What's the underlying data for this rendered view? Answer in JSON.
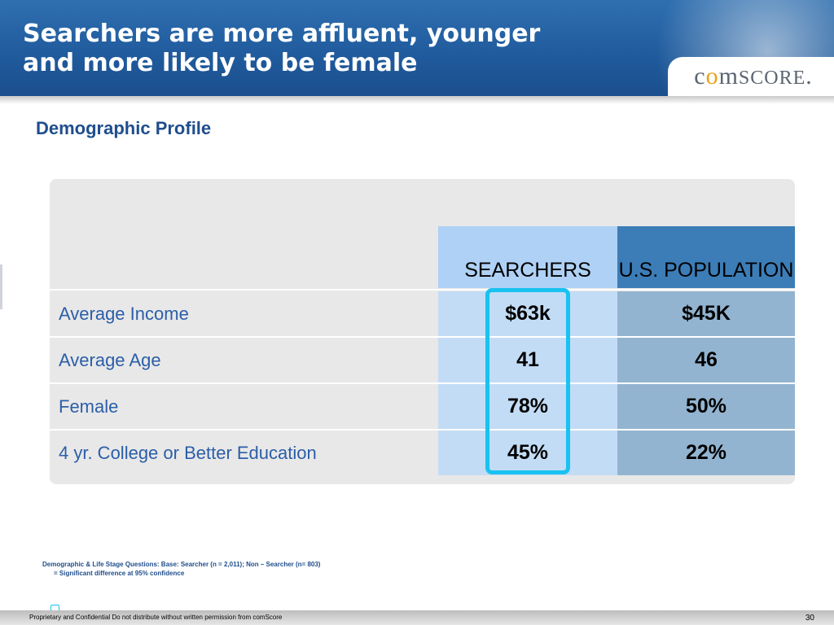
{
  "header": {
    "title_line1": "Searchers are more affluent, younger",
    "title_line2": "and more likely to be female",
    "logo_text": "comScore"
  },
  "subtitle": "Demographic Profile",
  "table": {
    "columns": [
      "SEARCHERS",
      "U.S. POPULATION"
    ],
    "rows": [
      {
        "label": "Average Income",
        "searchers": "$63k",
        "us_population": "$45K"
      },
      {
        "label": "Average Age",
        "searchers": "41",
        "us_population": "46"
      },
      {
        "label": "Female",
        "searchers": "78%",
        "us_population": "50%"
      },
      {
        "label": "4 yr. College or Better Education",
        "searchers": "45%",
        "us_population": "22%"
      }
    ]
  },
  "notes": {
    "base": "Demographic & Life Stage Questions: Base: Searcher (n = 2,011); Non – Searcher (n= 803)",
    "significance": "= Significant difference at 95% confidence"
  },
  "footer": {
    "confidential": "Proprietary and Confidential Do not distribute without written permission from comScore",
    "page_number": "30"
  },
  "colors": {
    "header_blue": "#1f5a9c",
    "highlight": "#19c2f0",
    "searchers_header": "#aed1f5",
    "us_header": "#3c7db7"
  }
}
